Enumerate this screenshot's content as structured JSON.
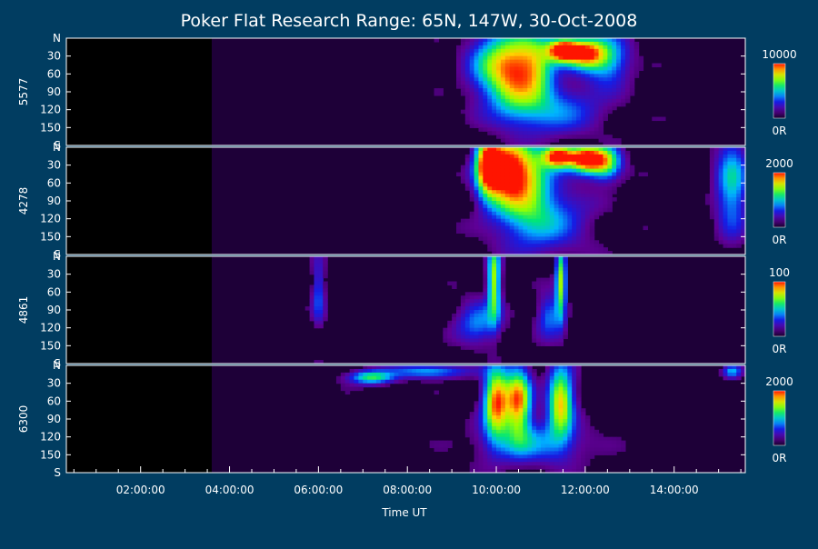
{
  "chart_data": {
    "type": "heatmap",
    "title": "Poker Flat Research Range: 65N, 147W, 30-Oct-2008",
    "xlabel": "Time UT",
    "x_tick_labels": [
      "02:00:00",
      "04:00:00",
      "06:00:00",
      "08:00:00",
      "10:00:00",
      "12:00:00",
      "14:00:00"
    ],
    "x_ticks_hours": [
      2,
      4,
      6,
      8,
      10,
      12,
      14
    ],
    "xlim_hours": [
      0.33,
      15.6
    ],
    "y_tick_labels": [
      "N",
      "30",
      "60",
      "90",
      "120",
      "150",
      "S"
    ],
    "y_ticks_deg": [
      0,
      30,
      60,
      90,
      120,
      150,
      180
    ],
    "ylim_deg": [
      0,
      180
    ],
    "data_start_hours": 3.6,
    "panels": [
      {
        "ylabel": "5577",
        "colorbar_max": "10000",
        "colorbar_min": "0R",
        "peak": 10000,
        "events": [
          {
            "t": 9.9,
            "ang": 45,
            "dt": 0.4,
            "dang": 40,
            "amp": 0.45
          },
          {
            "t": 10.4,
            "ang": 55,
            "dt": 0.35,
            "dang": 45,
            "amp": 0.6
          },
          {
            "t": 10.9,
            "ang": 45,
            "dt": 0.3,
            "dang": 40,
            "amp": 0.55
          },
          {
            "t": 11.5,
            "ang": 20,
            "dt": 0.25,
            "dang": 14,
            "amp": 1.0
          },
          {
            "t": 12.0,
            "ang": 25,
            "dt": 0.3,
            "dang": 18,
            "amp": 0.8
          },
          {
            "t": 12.5,
            "ang": 35,
            "dt": 0.35,
            "dang": 30,
            "amp": 0.45
          },
          {
            "t": 11.2,
            "ang": 120,
            "dt": 0.8,
            "dang": 30,
            "amp": 0.35
          }
        ]
      },
      {
        "ylabel": "4278",
        "colorbar_max": "2000",
        "colorbar_min": "0R",
        "peak": 2000,
        "events": [
          {
            "t": 9.8,
            "ang": 30,
            "dt": 0.2,
            "dang": 35,
            "amp": 0.95
          },
          {
            "t": 10.2,
            "ang": 40,
            "dt": 0.3,
            "dang": 40,
            "amp": 0.8
          },
          {
            "t": 10.7,
            "ang": 45,
            "dt": 0.35,
            "dang": 45,
            "amp": 0.6
          },
          {
            "t": 11.4,
            "ang": 15,
            "dt": 0.25,
            "dang": 14,
            "amp": 1.0
          },
          {
            "t": 12.0,
            "ang": 20,
            "dt": 0.25,
            "dang": 16,
            "amp": 0.95
          },
          {
            "t": 12.45,
            "ang": 25,
            "dt": 0.25,
            "dang": 20,
            "amp": 0.7
          },
          {
            "t": 11.0,
            "ang": 120,
            "dt": 0.7,
            "dang": 40,
            "amp": 0.4
          },
          {
            "t": 15.3,
            "ang": 60,
            "dt": 0.25,
            "dang": 60,
            "amp": 0.45
          }
        ]
      },
      {
        "ylabel": "4861",
        "colorbar_max": "100",
        "colorbar_min": "0R",
        "peak": 100,
        "events": [
          {
            "t": 9.95,
            "ang": 40,
            "dt": 0.1,
            "dang": 45,
            "amp": 0.7
          },
          {
            "t": 9.6,
            "ang": 110,
            "dt": 0.35,
            "dang": 25,
            "amp": 0.35
          },
          {
            "t": 11.45,
            "ang": 40,
            "dt": 0.08,
            "dang": 45,
            "amp": 0.65
          },
          {
            "t": 11.2,
            "ang": 100,
            "dt": 0.2,
            "dang": 25,
            "amp": 0.35
          },
          {
            "t": 6.0,
            "ang": 60,
            "dt": 0.1,
            "dang": 40,
            "amp": 0.3
          }
        ]
      },
      {
        "ylabel": "6300",
        "colorbar_max": "2000",
        "colorbar_min": "0R",
        "peak": 2000,
        "events": [
          {
            "t": 7.2,
            "ang": 20,
            "dt": 0.35,
            "dang": 8,
            "amp": 0.55
          },
          {
            "t": 8.5,
            "ang": 10,
            "dt": 0.6,
            "dang": 8,
            "amp": 0.4
          },
          {
            "t": 10.0,
            "ang": 60,
            "dt": 0.2,
            "dang": 40,
            "amp": 0.9
          },
          {
            "t": 10.5,
            "ang": 60,
            "dt": 0.2,
            "dang": 40,
            "amp": 0.85
          },
          {
            "t": 11.45,
            "ang": 60,
            "dt": 0.2,
            "dang": 40,
            "amp": 0.8
          },
          {
            "t": 10.8,
            "ang": 130,
            "dt": 0.8,
            "dang": 25,
            "amp": 0.35
          },
          {
            "t": 15.3,
            "ang": 10,
            "dt": 0.15,
            "dang": 8,
            "amp": 0.4
          }
        ]
      }
    ]
  }
}
